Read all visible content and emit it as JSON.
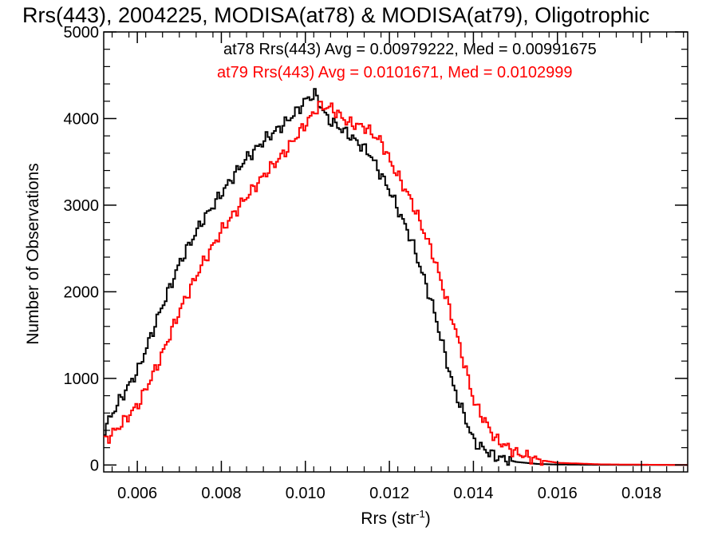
{
  "chart_data": {
    "type": "line",
    "title": "Rrs(443), 2004225, MODISA(at78) & MODISA(at79), Oligotrophic",
    "xlabel_main": "Rrs (str",
    "xlabel_sup": "-1",
    "xlabel_tail": ")",
    "ylabel": "Number of Observations",
    "xlim": [
      0.0052,
      0.0191
    ],
    "ylim": [
      -80,
      5000
    ],
    "xticks": [
      "0.006",
      "0.008",
      "0.010",
      "0.012",
      "0.014",
      "0.016",
      "0.018"
    ],
    "xtick_values": [
      0.006,
      0.008,
      0.01,
      0.012,
      0.014,
      0.016,
      0.018
    ],
    "yticks": [
      "0",
      "1000",
      "2000",
      "3000",
      "4000",
      "5000"
    ],
    "ytick_values": [
      0,
      1000,
      2000,
      3000,
      4000,
      5000
    ],
    "annotations": [
      {
        "text": "at78 Rrs(443) Avg = 0.00979222, Med = 0.00991675",
        "color": "#000000"
      },
      {
        "text": "at79 Rrs(443) Avg = 0.0101671, Med = 0.0102999",
        "color": "#ff0000"
      }
    ],
    "series": [
      {
        "color": "#000000",
        "x": [
          0.0052,
          0.0055,
          0.006,
          0.0065,
          0.007,
          0.0075,
          0.008,
          0.0085,
          0.009,
          0.0095,
          0.0098,
          0.01,
          0.0102,
          0.0105,
          0.011,
          0.0115,
          0.012,
          0.0125,
          0.013,
          0.0135,
          0.014,
          0.0145,
          0.015,
          0.0155,
          0.016,
          0.017,
          0.019
        ],
        "y": [
          420,
          700,
          1100,
          1750,
          2350,
          2800,
          3150,
          3500,
          3750,
          3950,
          4100,
          4220,
          4280,
          4000,
          3820,
          3600,
          3150,
          2600,
          1850,
          900,
          260,
          95,
          35,
          12,
          5,
          2,
          0
        ]
      },
      {
        "color": "#ff0000",
        "x": [
          0.0052,
          0.0055,
          0.006,
          0.0065,
          0.007,
          0.0075,
          0.008,
          0.0085,
          0.009,
          0.0095,
          0.01,
          0.0103,
          0.0106,
          0.011,
          0.0114,
          0.0118,
          0.012,
          0.0125,
          0.013,
          0.0135,
          0.014,
          0.0145,
          0.015,
          0.0155,
          0.016,
          0.017,
          0.019
        ],
        "y": [
          280,
          420,
          700,
          1200,
          1800,
          2300,
          2720,
          3050,
          3350,
          3620,
          3950,
          4150,
          4120,
          3950,
          3900,
          3720,
          3500,
          3050,
          2450,
          1650,
          720,
          300,
          140,
          60,
          25,
          8,
          0
        ]
      }
    ]
  }
}
